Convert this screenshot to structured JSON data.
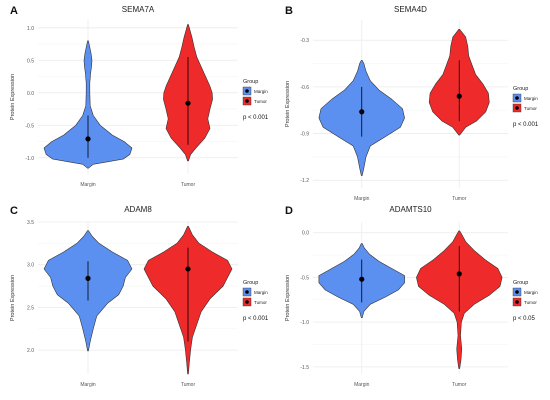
{
  "colors": {
    "margin": "#5b8ff0",
    "tumor": "#ee2a2a",
    "grid": "#ebebeb",
    "outline": "#333333"
  },
  "chart_data": [
    {
      "type": "violin",
      "panel_label": "A",
      "title": "SEMA7A",
      "ylabel": "Protein Expression",
      "ylim": [
        -1.25,
        1.12
      ],
      "yticks": [
        -1.0,
        -0.5,
        0.0,
        0.5,
        1.0
      ],
      "ytick_labels": [
        "-1.0",
        "-0.5",
        "0.0",
        "0.5",
        "1.0"
      ],
      "categories": [
        "Margin",
        "Tumor"
      ],
      "series": [
        {
          "name": "Margin",
          "range": [
            -1.16,
            0.8
          ],
          "median_point": -0.71,
          "whisker": [
            -1.0,
            -0.35
          ],
          "density": [
            [
              -1.16,
              0.01
            ],
            [
              -1.1,
              0.12
            ],
            [
              -1.02,
              0.8
            ],
            [
              -0.95,
              0.95
            ],
            [
              -0.85,
              1.0
            ],
            [
              -0.75,
              0.82
            ],
            [
              -0.65,
              0.55
            ],
            [
              -0.5,
              0.28
            ],
            [
              -0.35,
              0.12
            ],
            [
              -0.2,
              0.05
            ],
            [
              0.0,
              0.04
            ],
            [
              0.15,
              0.04
            ],
            [
              0.3,
              0.06
            ],
            [
              0.4,
              0.08
            ],
            [
              0.5,
              0.09
            ],
            [
              0.6,
              0.07
            ],
            [
              0.7,
              0.04
            ],
            [
              0.8,
              0.01
            ]
          ]
        },
        {
          "name": "Tumor",
          "range": [
            -1.05,
            1.05
          ],
          "median_point": -0.16,
          "whisker": [
            -0.8,
            0.55
          ],
          "density": [
            [
              -1.05,
              0.01
            ],
            [
              -0.95,
              0.06
            ],
            [
              -0.85,
              0.18
            ],
            [
              -0.7,
              0.38
            ],
            [
              -0.55,
              0.5
            ],
            [
              -0.4,
              0.45
            ],
            [
              -0.25,
              0.5
            ],
            [
              -0.1,
              0.56
            ],
            [
              0.0,
              0.55
            ],
            [
              0.1,
              0.5
            ],
            [
              0.25,
              0.4
            ],
            [
              0.4,
              0.3
            ],
            [
              0.55,
              0.2
            ],
            [
              0.7,
              0.14
            ],
            [
              0.85,
              0.09
            ],
            [
              0.95,
              0.05
            ],
            [
              1.05,
              0.01
            ]
          ]
        }
      ],
      "xlabels": [
        "Margin",
        "Tumor"
      ],
      "legend": {
        "title": "Group",
        "entries": [
          "Margin",
          "Tumor"
        ]
      },
      "annotation": "p < 0.001"
    },
    {
      "type": "violin",
      "panel_label": "B",
      "title": "SEMA4D",
      "ylabel": "Protein Expression",
      "ylim": [
        -1.25,
        -0.17
      ],
      "yticks": [
        -1.2,
        -0.9,
        -0.6,
        -0.3
      ],
      "ytick_labels": [
        "-1.2",
        "-0.9",
        "-0.6",
        "-0.3"
      ],
      "categories": [
        "Margin",
        "Tumor"
      ],
      "series": [
        {
          "name": "Margin",
          "range": [
            -1.17,
            -0.43
          ],
          "median_point": -0.76,
          "whisker": [
            -0.92,
            -0.6
          ],
          "density": [
            [
              -1.17,
              0.01
            ],
            [
              -1.12,
              0.05
            ],
            [
              -1.05,
              0.1
            ],
            [
              -0.98,
              0.2
            ],
            [
              -0.92,
              0.55
            ],
            [
              -0.86,
              0.9
            ],
            [
              -0.8,
              1.0
            ],
            [
              -0.74,
              0.95
            ],
            [
              -0.68,
              0.7
            ],
            [
              -0.62,
              0.4
            ],
            [
              -0.56,
              0.2
            ],
            [
              -0.5,
              0.1
            ],
            [
              -0.45,
              0.05
            ],
            [
              -0.43,
              0.01
            ]
          ]
        },
        {
          "name": "Tumor",
          "range": [
            -0.91,
            -0.23
          ],
          "median_point": -0.66,
          "whisker": [
            -0.82,
            -0.43
          ],
          "density": [
            [
              -0.91,
              0.01
            ],
            [
              -0.86,
              0.15
            ],
            [
              -0.82,
              0.4
            ],
            [
              -0.76,
              0.62
            ],
            [
              -0.7,
              0.7
            ],
            [
              -0.64,
              0.68
            ],
            [
              -0.58,
              0.55
            ],
            [
              -0.52,
              0.38
            ],
            [
              -0.46,
              0.3
            ],
            [
              -0.4,
              0.22
            ],
            [
              -0.34,
              0.2
            ],
            [
              -0.28,
              0.15
            ],
            [
              -0.23,
              0.01
            ]
          ]
        }
      ],
      "xlabels": [
        "Margin",
        "Tumor"
      ],
      "legend": {
        "title": "Group",
        "entries": [
          "Margin",
          "Tumor"
        ]
      },
      "annotation": "p < 0.001"
    },
    {
      "type": "violin",
      "panel_label": "C",
      "title": "ADAM8",
      "ylabel": "Protein Expression",
      "ylim": [
        1.72,
        3.5
      ],
      "yticks": [
        2.0,
        2.5,
        3.0,
        3.5
      ],
      "ytick_labels": [
        "2.0",
        "2.5",
        "3.0",
        "3.5"
      ],
      "categories": [
        "Margin",
        "Tumor"
      ],
      "series": [
        {
          "name": "Margin",
          "range": [
            1.99,
            3.4
          ],
          "median_point": 2.84,
          "whisker": [
            2.58,
            3.04
          ],
          "density": [
            [
              1.99,
              0.01
            ],
            [
              2.1,
              0.05
            ],
            [
              2.25,
              0.12
            ],
            [
              2.4,
              0.2
            ],
            [
              2.55,
              0.45
            ],
            [
              2.65,
              0.7
            ],
            [
              2.75,
              0.8
            ],
            [
              2.85,
              0.85
            ],
            [
              2.95,
              1.0
            ],
            [
              3.05,
              0.9
            ],
            [
              3.15,
              0.55
            ],
            [
              3.25,
              0.25
            ],
            [
              3.33,
              0.1
            ],
            [
              3.4,
              0.01
            ]
          ]
        },
        {
          "name": "Tumor",
          "range": [
            1.72,
            3.45
          ],
          "median_point": 2.95,
          "whisker": [
            2.1,
            3.2
          ],
          "density": [
            [
              1.72,
              0.01
            ],
            [
              1.85,
              0.03
            ],
            [
              2.0,
              0.06
            ],
            [
              2.15,
              0.1
            ],
            [
              2.3,
              0.2
            ],
            [
              2.45,
              0.3
            ],
            [
              2.6,
              0.5
            ],
            [
              2.75,
              0.8
            ],
            [
              2.85,
              0.9
            ],
            [
              2.95,
              1.0
            ],
            [
              3.05,
              0.9
            ],
            [
              3.15,
              0.55
            ],
            [
              3.25,
              0.25
            ],
            [
              3.35,
              0.1
            ],
            [
              3.45,
              0.01
            ]
          ]
        }
      ],
      "xlabels": [
        "Margin",
        "Tumor"
      ],
      "legend": {
        "title": "Group",
        "entries": [
          "Margin",
          "Tumor"
        ]
      },
      "annotation": "p < 0.001"
    },
    {
      "type": "violin",
      "panel_label": "D",
      "title": "ADAMTS10",
      "ylabel": "Protein Expression",
      "ylim": [
        -1.58,
        0.12
      ],
      "yticks": [
        -1.5,
        -1.0,
        -0.5,
        0.0
      ],
      "ytick_labels": [
        "-1.5",
        "-1.0",
        "-0.5",
        "0.0"
      ],
      "categories": [
        "Margin",
        "Tumor"
      ],
      "series": [
        {
          "name": "Margin",
          "range": [
            -0.95,
            -0.12
          ],
          "median_point": -0.52,
          "whisker": [
            -0.78,
            -0.3
          ],
          "density": [
            [
              -0.95,
              0.01
            ],
            [
              -0.88,
              0.05
            ],
            [
              -0.8,
              0.2
            ],
            [
              -0.72,
              0.55
            ],
            [
              -0.64,
              0.85
            ],
            [
              -0.56,
              1.0
            ],
            [
              -0.48,
              1.0
            ],
            [
              -0.4,
              0.7
            ],
            [
              -0.32,
              0.4
            ],
            [
              -0.24,
              0.18
            ],
            [
              -0.17,
              0.06
            ],
            [
              -0.12,
              0.01
            ]
          ]
        },
        {
          "name": "Tumor",
          "range": [
            -1.52,
            0.02
          ],
          "median_point": -0.46,
          "whisker": [
            -0.88,
            -0.15
          ],
          "density": [
            [
              -1.52,
              0.01
            ],
            [
              -1.42,
              0.04
            ],
            [
              -1.3,
              0.06
            ],
            [
              -1.15,
              0.03
            ],
            [
              -1.0,
              0.05
            ],
            [
              -0.9,
              0.12
            ],
            [
              -0.8,
              0.35
            ],
            [
              -0.7,
              0.7
            ],
            [
              -0.6,
              0.95
            ],
            [
              -0.5,
              1.0
            ],
            [
              -0.4,
              0.9
            ],
            [
              -0.3,
              0.6
            ],
            [
              -0.2,
              0.35
            ],
            [
              -0.1,
              0.15
            ],
            [
              -0.02,
              0.06
            ],
            [
              0.02,
              0.01
            ]
          ]
        }
      ],
      "xlabels": [
        "Margin",
        "Tumor"
      ],
      "legend": {
        "title": "Group",
        "entries": [
          "Margin",
          "Tumor"
        ]
      },
      "annotation": "p < 0.05"
    }
  ]
}
